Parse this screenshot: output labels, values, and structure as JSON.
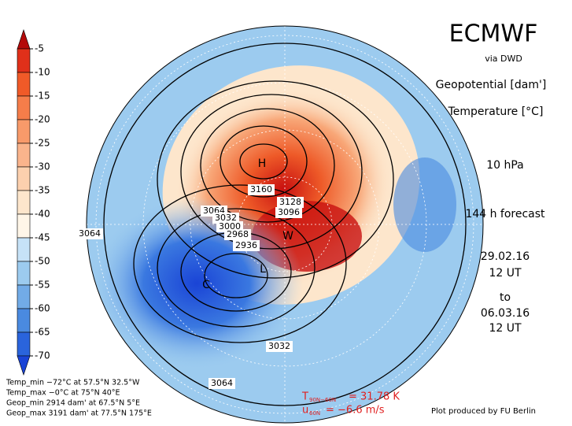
{
  "colorbar": {
    "ticks": [
      -5,
      -10,
      -15,
      -20,
      -25,
      -30,
      -35,
      -40,
      -45,
      -50,
      -55,
      -60,
      -65,
      -70
    ],
    "colors": [
      "#b40a0a",
      "#e0301a",
      "#f05a28",
      "#f57d4a",
      "#f89a6a",
      "#fab48c",
      "#fcd0ae",
      "#fde6cc",
      "#fff6e8",
      "#c6e2f7",
      "#9ccbef",
      "#72abe7",
      "#4a8ae0",
      "#2a64dc",
      "#1a44d6"
    ]
  },
  "header": {
    "title": "ECMWF",
    "source": "via DWD",
    "variables": [
      "Geopotential [dam']",
      "Temperature [°C]"
    ],
    "level": "10 hPa",
    "forecast": "144 h forecast",
    "init": [
      "29.02.16",
      "12 UT"
    ],
    "to": "to",
    "valid": [
      "06.03.16",
      "12 UT"
    ]
  },
  "map_labels": {
    "high": "H",
    "warm": "W",
    "low": "L",
    "cold": "C",
    "contours": [
      "3160",
      "3128",
      "3096",
      "3064",
      "3032",
      "3000",
      "2968",
      "2936",
      "3064",
      "3032",
      "3064"
    ]
  },
  "stats": [
    "Temp_min −72°C at 57.5°N 32.5°W",
    "Temp_max −0°C at 75°N 40°E",
    "Geop_min 2914 dam' at 67.5°N 5°E",
    "Geop_max 3191 dam' at 77.5°N 175°E"
  ],
  "indices": {
    "t_symbol": "T",
    "t_sub": "90N−60N",
    "t_text": "= 31.78 K",
    "u_symbol": "u",
    "u_sub": "60N",
    "u_text": "= −6.6 m/s"
  },
  "credit": "Plot produced by FU Berlin"
}
